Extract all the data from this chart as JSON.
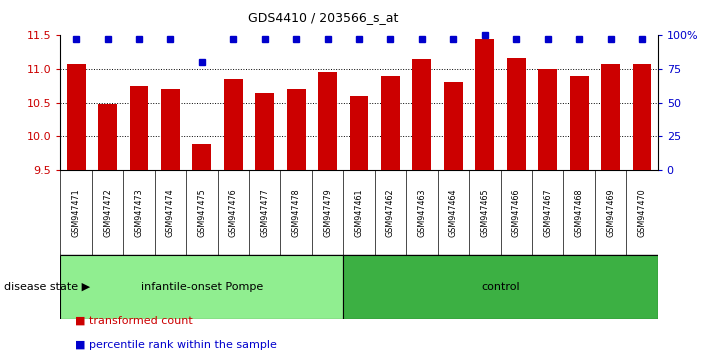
{
  "title": "GDS4410 / 203566_s_at",
  "samples": [
    "GSM947471",
    "GSM947472",
    "GSM947473",
    "GSM947474",
    "GSM947475",
    "GSM947476",
    "GSM947477",
    "GSM947478",
    "GSM947479",
    "GSM947461",
    "GSM947462",
    "GSM947463",
    "GSM947464",
    "GSM947465",
    "GSM947466",
    "GSM947467",
    "GSM947468",
    "GSM947469",
    "GSM947470"
  ],
  "bar_values": [
    11.07,
    10.48,
    10.75,
    10.7,
    9.88,
    10.85,
    10.65,
    10.7,
    10.95,
    10.6,
    10.9,
    11.15,
    10.8,
    11.45,
    11.17,
    11.0,
    10.9,
    11.08,
    11.07
  ],
  "percentile_values": [
    97,
    97,
    97,
    97,
    80,
    97,
    97,
    97,
    97,
    97,
    97,
    97,
    97,
    100,
    97,
    97,
    97,
    97,
    97
  ],
  "groups": [
    {
      "label": "infantile-onset Pompe",
      "start": 0,
      "end": 9,
      "color": "#90EE90"
    },
    {
      "label": "control",
      "start": 9,
      "end": 19,
      "color": "#3CB043"
    }
  ],
  "disease_state_label": "disease state",
  "ylim": [
    9.5,
    11.5
  ],
  "yticks": [
    9.5,
    10.0,
    10.5,
    11.0,
    11.5
  ],
  "right_yticks": [
    0,
    25,
    50,
    75,
    100
  ],
  "right_ylabels": [
    "0",
    "25",
    "50",
    "75",
    "100%"
  ],
  "bar_color": "#CC0000",
  "percentile_color": "#0000CC",
  "background_color": "#FFFFFF",
  "plot_bg_color": "#FFFFFF",
  "sample_bg_color": "#C8C8C8",
  "group_border_color": "#000000",
  "legend_items": [
    {
      "label": "transformed count",
      "color": "#CC0000"
    },
    {
      "label": "percentile rank within the sample",
      "color": "#0000CC"
    }
  ]
}
